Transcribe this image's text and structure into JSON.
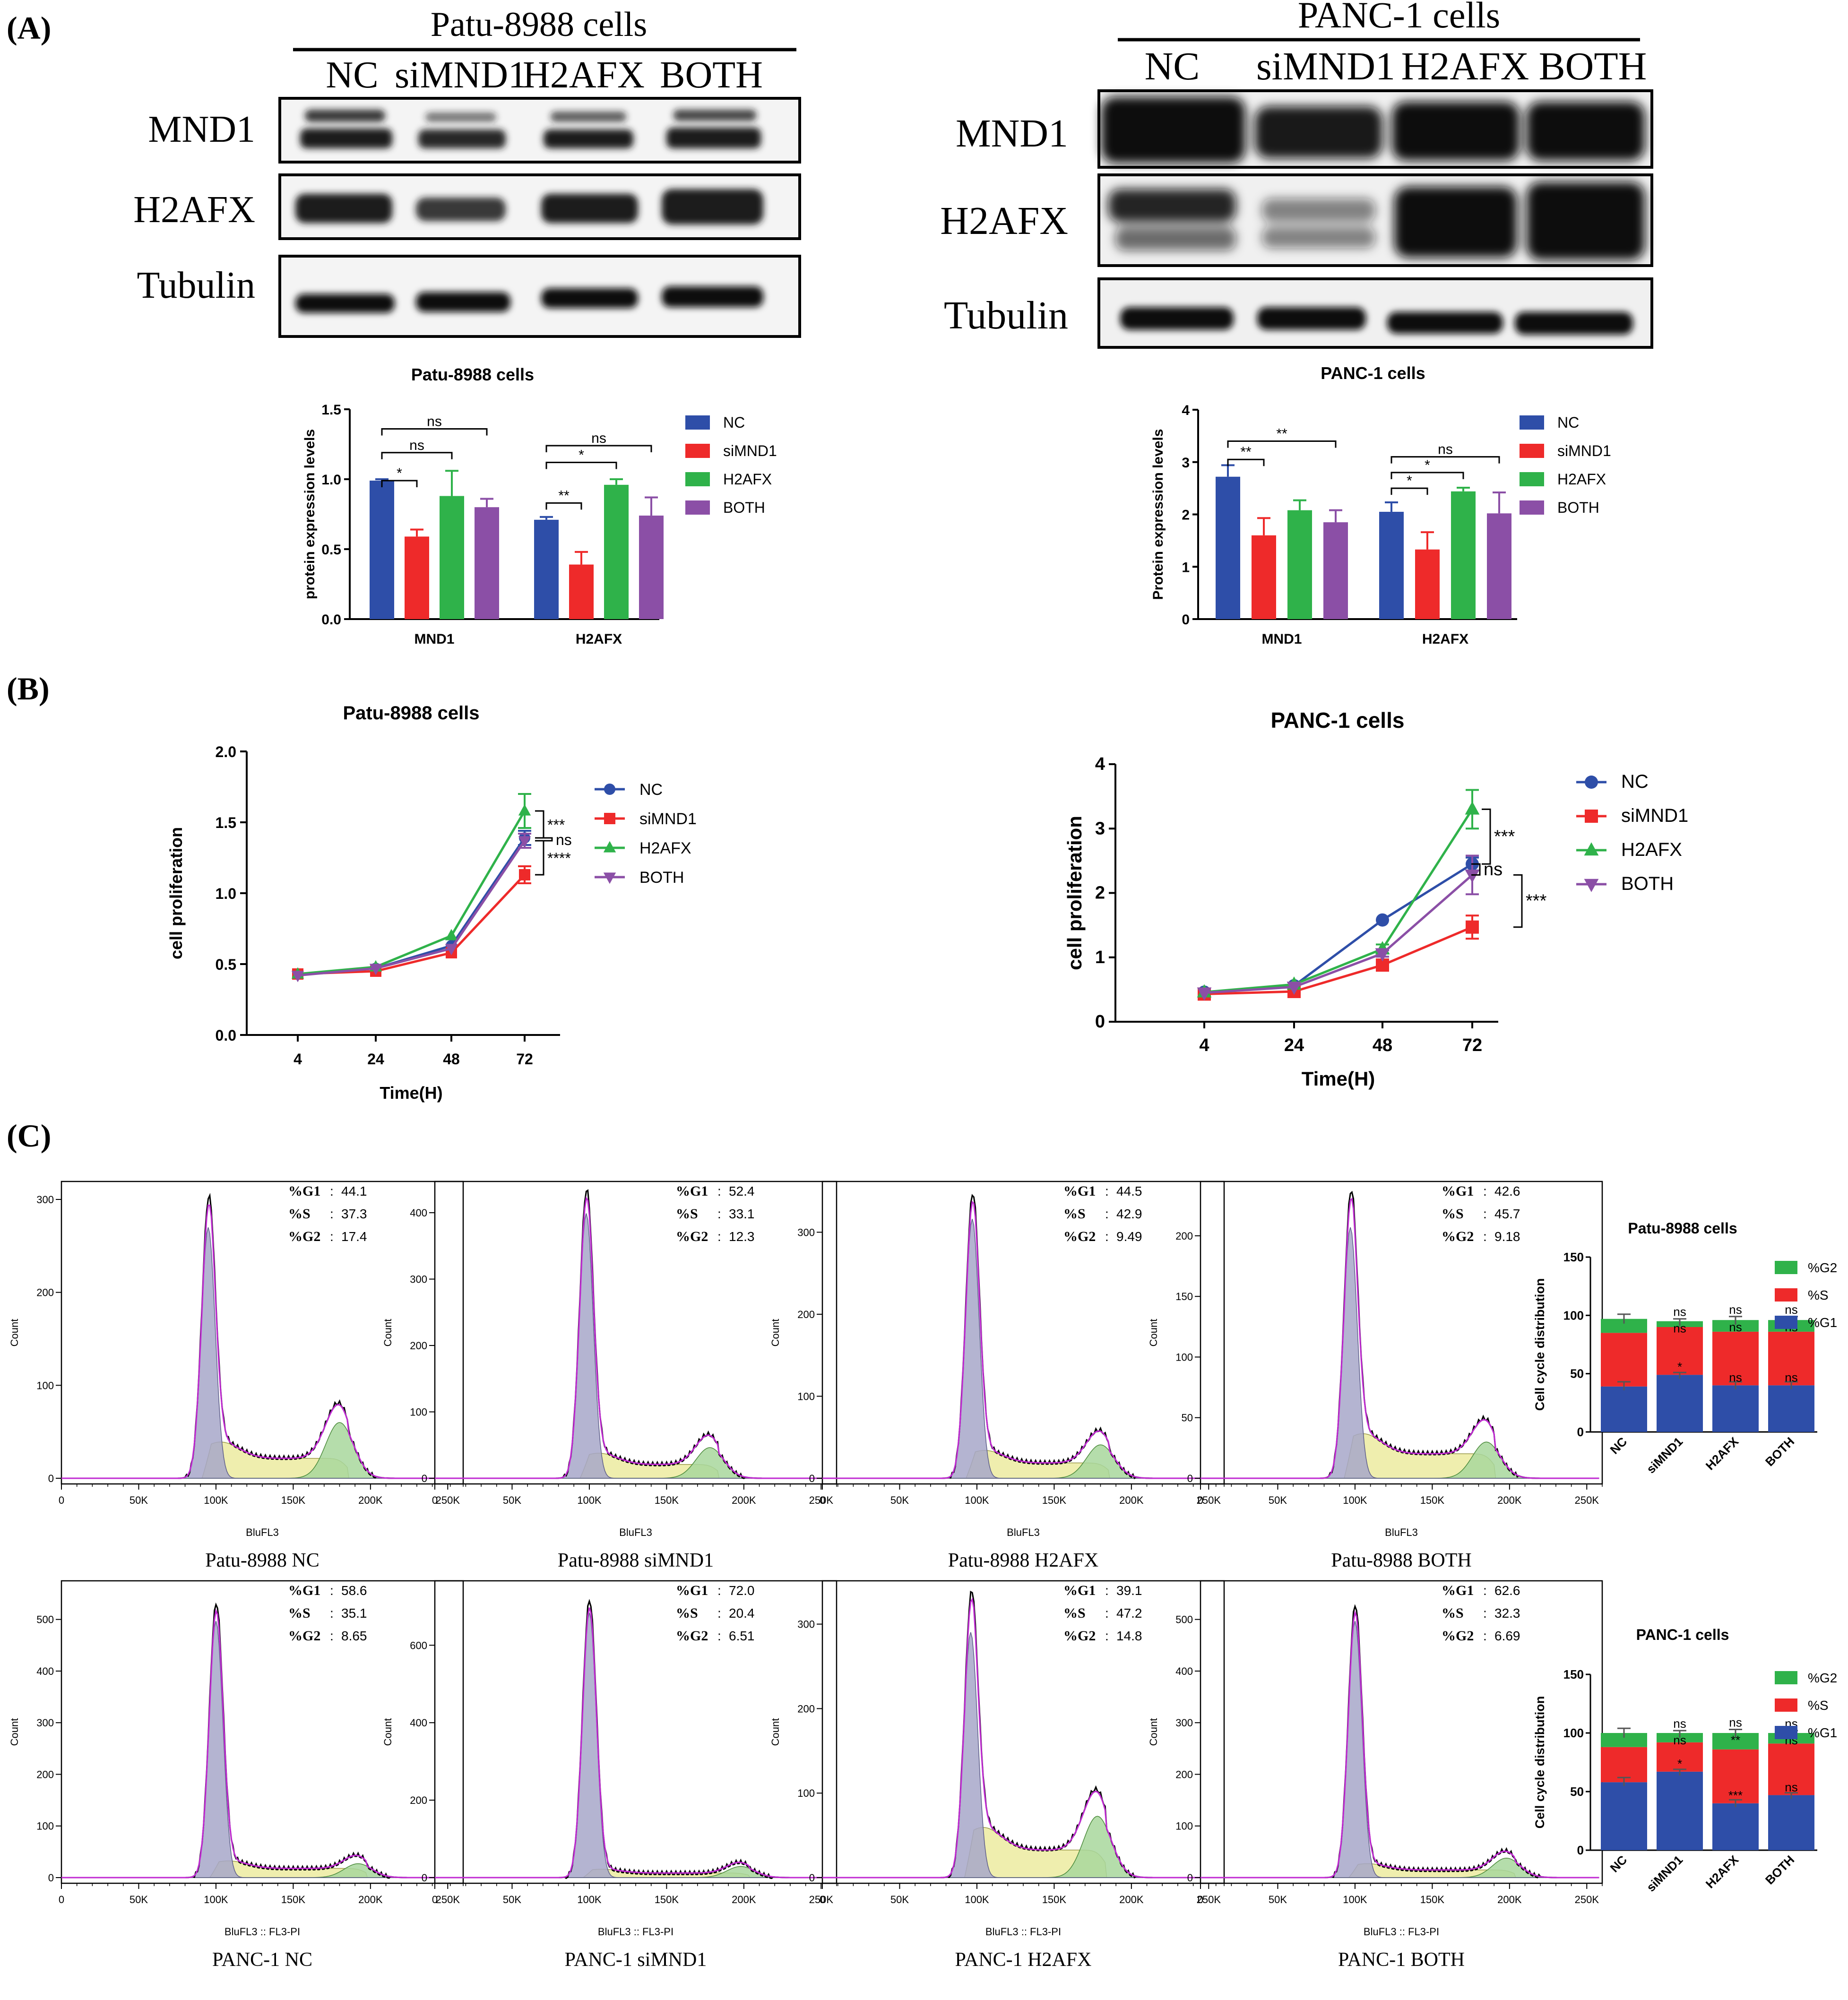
{
  "panels": {
    "a": "(A)",
    "b": "(B)",
    "c": "(C)"
  },
  "palette": {
    "nc": "#2e4ea8",
    "simnd1": "#ee2a2a",
    "h2afx": "#2fb24a",
    "both": "#8b4fa6",
    "gray": "#c9c9c9",
    "yellow": "#efeeae",
    "green_fill": "#a8d79c",
    "purple_line": "#c02ad2"
  },
  "blots": [
    {
      "title": "Patu-8988 cells",
      "lanes": [
        "NC",
        "siMND1",
        "H2AFX",
        "BOTH"
      ],
      "rows": [
        "MND1",
        "H2AFX",
        "Tubulin"
      ]
    },
    {
      "title": "PANC-1 cells",
      "lanes": [
        "NC",
        "siMND1",
        "H2AFX",
        "BOTH"
      ],
      "rows": [
        "MND1",
        "H2AFX",
        "Tubulin"
      ]
    }
  ],
  "chart_data": [
    {
      "id": "a_patu",
      "type": "bar",
      "title": "Patu-8988 cells",
      "ylabel": "protein expression levels",
      "xlabel": "",
      "categories": [
        "MND1",
        "H2AFX"
      ],
      "ylim": [
        0,
        1.5
      ],
      "yticks": [
        "0.0",
        "0.5",
        "1.0",
        "1.5"
      ],
      "series": [
        {
          "name": "NC",
          "values": [
            0.99,
            0.71
          ],
          "errors": [
            0.01,
            0.02
          ]
        },
        {
          "name": "siMND1",
          "values": [
            0.59,
            0.39
          ],
          "errors": [
            0.05,
            0.09
          ]
        },
        {
          "name": "H2AFX",
          "values": [
            0.88,
            0.96
          ],
          "errors": [
            0.18,
            0.04
          ]
        },
        {
          "name": "BOTH",
          "values": [
            0.8,
            0.74
          ],
          "errors": [
            0.06,
            0.13
          ]
        }
      ],
      "annotations": [
        "*",
        "ns",
        "ns",
        "**",
        "*",
        "ns"
      ],
      "legend": [
        "NC",
        "siMND1",
        "H2AFX",
        "BOTH"
      ]
    },
    {
      "id": "a_panc",
      "type": "bar",
      "title": "PANC-1 cells",
      "ylabel": "Protein expression levels",
      "xlabel": "",
      "categories": [
        "MND1",
        "H2AFX"
      ],
      "ylim": [
        0,
        4
      ],
      "yticks": [
        "0",
        "1",
        "2",
        "3",
        "4"
      ],
      "series": [
        {
          "name": "NC",
          "values": [
            2.72,
            2.05
          ],
          "errors": [
            0.22,
            0.18
          ]
        },
        {
          "name": "siMND1",
          "values": [
            1.6,
            1.33
          ],
          "errors": [
            0.33,
            0.33
          ]
        },
        {
          "name": "H2AFX",
          "values": [
            2.08,
            2.44
          ],
          "errors": [
            0.19,
            0.07
          ]
        },
        {
          "name": "BOTH",
          "values": [
            1.85,
            2.02
          ],
          "errors": [
            0.23,
            0.4
          ]
        }
      ],
      "annotations": [
        "**",
        "**",
        "*",
        "*",
        "ns"
      ],
      "legend": [
        "NC",
        "siMND1",
        "H2AFX",
        "BOTH"
      ]
    },
    {
      "id": "b_patu",
      "type": "line",
      "title": "Patu-8988 cells",
      "ylabel": "cell proliferation",
      "xlabel": "Time(H)",
      "x": [
        "4",
        "24",
        "48",
        "72"
      ],
      "ylim": [
        0,
        2.0
      ],
      "yticks": [
        "0.0",
        "0.5",
        "1.0",
        "1.5",
        "2.0"
      ],
      "series": [
        {
          "name": "NC",
          "values": [
            0.43,
            0.47,
            0.63,
            1.39
          ],
          "errors": [
            0.01,
            0.01,
            0.02,
            0.05
          ]
        },
        {
          "name": "siMND1",
          "values": [
            0.43,
            0.45,
            0.58,
            1.13
          ],
          "errors": [
            0.01,
            0.01,
            0.02,
            0.06
          ]
        },
        {
          "name": "H2AFX",
          "values": [
            0.43,
            0.48,
            0.7,
            1.58
          ],
          "errors": [
            0.01,
            0.01,
            0.02,
            0.12
          ]
        },
        {
          "name": "BOTH",
          "values": [
            0.42,
            0.47,
            0.61,
            1.37
          ],
          "errors": [
            0.01,
            0.01,
            0.02,
            0.05
          ]
        }
      ],
      "annotations": [
        "***",
        "ns",
        "****"
      ],
      "legend": [
        "NC",
        "siMND1",
        "H2AFX",
        "BOTH"
      ]
    },
    {
      "id": "b_panc",
      "type": "line",
      "title": "PANC-1 cells",
      "ylabel": "cell proliferation",
      "xlabel": "Time(H)",
      "x": [
        "4",
        "24",
        "48",
        "72"
      ],
      "ylim": [
        0,
        4
      ],
      "yticks": [
        "0",
        "1",
        "2",
        "3",
        "4"
      ],
      "series": [
        {
          "name": "NC",
          "values": [
            0.46,
            0.56,
            1.58,
            2.45
          ],
          "errors": [
            0.02,
            0.02,
            0.03,
            0.1
          ]
        },
        {
          "name": "siMND1",
          "values": [
            0.43,
            0.47,
            0.88,
            1.47
          ],
          "errors": [
            0.02,
            0.02,
            0.05,
            0.18
          ]
        },
        {
          "name": "H2AFX",
          "values": [
            0.46,
            0.58,
            1.13,
            3.3
          ],
          "errors": [
            0.02,
            0.02,
            0.07,
            0.3
          ]
        },
        {
          "name": "BOTH",
          "values": [
            0.45,
            0.54,
            1.06,
            2.28
          ],
          "errors": [
            0.02,
            0.02,
            0.05,
            0.3
          ]
        }
      ],
      "annotations": [
        "***",
        "ns",
        "***"
      ],
      "legend": [
        "NC",
        "siMND1",
        "H2AFX",
        "BOTH"
      ]
    },
    {
      "id": "c_patu_bar",
      "type": "bar",
      "stacked": true,
      "title": "Patu-8988 cells",
      "ylabel": "Cell cycle distribution",
      "categories": [
        "NC",
        "siMND1",
        "H2AFX",
        "BOTH"
      ],
      "ylim": [
        0,
        150
      ],
      "yticks": [
        "0",
        "50",
        "100",
        "150"
      ],
      "series": [
        {
          "name": "%G1",
          "values": [
            39,
            49,
            40,
            40
          ]
        },
        {
          "name": "%S",
          "values": [
            46,
            41,
            46,
            46
          ]
        },
        {
          "name": "%G2",
          "values": [
            12,
            5,
            10,
            10
          ]
        }
      ],
      "errors": [
        4,
        2,
        3,
        3
      ],
      "annotations": {
        "top": [
          "",
          "ns",
          "ns",
          "ns"
        ],
        "s": [
          "",
          "ns",
          "ns",
          "ns"
        ],
        "g1": [
          "",
          "*",
          "ns",
          "ns"
        ]
      },
      "legend": [
        "%G2",
        "%S",
        "%G1"
      ]
    },
    {
      "id": "c_panc_bar",
      "type": "bar",
      "stacked": true,
      "title": "PANC-1 cells",
      "ylabel": "Cell cycle distribution",
      "categories": [
        "NC",
        "siMND1",
        "H2AFX",
        "BOTH"
      ],
      "ylim": [
        0,
        150
      ],
      "yticks": [
        "0",
        "50",
        "100",
        "150"
      ],
      "series": [
        {
          "name": "%G1",
          "values": [
            58,
            67,
            40,
            47
          ]
        },
        {
          "name": "%S",
          "values": [
            30,
            25,
            46,
            44
          ]
        },
        {
          "name": "%G2",
          "values": [
            12,
            8,
            14,
            9
          ]
        }
      ],
      "errors": [
        4,
        2,
        3,
        2
      ],
      "annotations": {
        "top": [
          "",
          "ns",
          "ns",
          "ns"
        ],
        "s": [
          "",
          "ns",
          "**",
          "ns"
        ],
        "g1": [
          "",
          "*",
          "***",
          "ns"
        ]
      },
      "legend": [
        "%G2",
        "%S",
        "%G1"
      ]
    }
  ],
  "histograms": [
    {
      "title": "Patu-8988 NC",
      "g1": "44.1",
      "s": "37.3",
      "g2": "17.4",
      "yticks": [
        "0",
        "100",
        "200",
        "300"
      ],
      "xlabel": "BluFL3"
    },
    {
      "title": "Patu-8988 siMND1",
      "g1": "52.4",
      "s": "33.1",
      "g2": "12.3",
      "yticks": [
        "0",
        "100",
        "200",
        "300",
        "400"
      ],
      "xlabel": "BluFL3"
    },
    {
      "title": "Patu-8988 H2AFX",
      "g1": "44.5",
      "s": "42.9",
      "g2": "9.49",
      "yticks": [
        "0",
        "100",
        "200",
        "300"
      ],
      "xlabel": "BluFL3"
    },
    {
      "title": "Patu-8988 BOTH",
      "g1": "42.6",
      "s": "45.7",
      "g2": "9.18",
      "yticks": [
        "0",
        "50",
        "100",
        "150",
        "200"
      ],
      "xlabel": "BluFL3"
    },
    {
      "title": "PANC-1 NC",
      "g1": "58.6",
      "s": "35.1",
      "g2": "8.65",
      "yticks": [
        "0",
        "100",
        "200",
        "300",
        "400",
        "500"
      ],
      "xlabel": "BluFL3 :: FL3-PI"
    },
    {
      "title": "PANC-1 siMND1",
      "g1": "72.0",
      "s": "20.4",
      "g2": "6.51",
      "yticks": [
        "0",
        "200",
        "400",
        "600"
      ],
      "xlabel": "BluFL3 :: FL3-PI"
    },
    {
      "title": "PANC-1 H2AFX",
      "g1": "39.1",
      "s": "47.2",
      "g2": "14.8",
      "yticks": [
        "0",
        "100",
        "200",
        "300"
      ],
      "xlabel": "BluFL3 :: FL3-PI"
    },
    {
      "title": "PANC-1 BOTH",
      "g1": "62.6",
      "s": "32.3",
      "g2": "6.69",
      "yticks": [
        "0",
        "100",
        "200",
        "300",
        "400",
        "500"
      ],
      "xlabel": "BluFL3 :: FL3-PI"
    }
  ],
  "hist_common": {
    "ylabel": "Count",
    "xticks": [
      "0",
      "50K",
      "100K",
      "150K",
      "200K",
      "250K"
    ],
    "g1_label": "%G1",
    "s_label": "%S",
    "g2_label": "%G2",
    "sep": ":"
  }
}
